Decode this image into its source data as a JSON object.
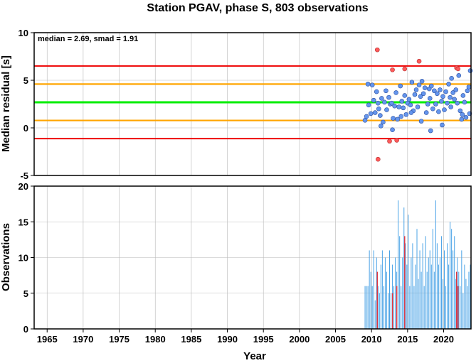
{
  "chart_data": {
    "title": "Station PGAV, phase S, 803 observations",
    "x_axis": {
      "label": "Year",
      "range": [
        1963.2,
        2023.8
      ],
      "ticks": [
        1965,
        1970,
        1975,
        1980,
        1985,
        1990,
        1995,
        2000,
        2005,
        2010,
        2015,
        2020
      ]
    },
    "colors": {
      "normal_point": "#6495ed",
      "outlier_point": "#ff5a5a",
      "median_line": "#00ee00",
      "smad_line": "#ffa500",
      "outlier_line": "#ee0000",
      "bar": "#4aa3e6",
      "bar_outlier": "#e0303a"
    },
    "panels": [
      {
        "type": "scatter",
        "ylabel": "Median residual [s]",
        "ylim": [
          -5,
          10
        ],
        "yticks": [
          -5,
          0,
          5,
          10
        ],
        "annotation": "median = 2.69, smad = 1.91",
        "median": 2.69,
        "reference_lines": [
          {
            "role": "outlier-upper",
            "y": 6.5
          },
          {
            "role": "smad-upper",
            "y": 4.6
          },
          {
            "role": "median",
            "y": 2.69
          },
          {
            "role": "smad-lower",
            "y": 0.78
          },
          {
            "role": "outlier-lower",
            "y": -1.13
          }
        ],
        "points": [
          [
            2009.1,
            0.8
          ],
          [
            2009.3,
            1.2
          ],
          [
            2009.5,
            4.6
          ],
          [
            2009.6,
            2.4
          ],
          [
            2009.9,
            1.5
          ],
          [
            2010.1,
            4.5
          ],
          [
            2010.3,
            2.9
          ],
          [
            2010.5,
            1.6
          ],
          [
            2010.7,
            3.8
          ],
          [
            2010.9,
            2.6
          ],
          [
            2011.0,
            2.0
          ],
          [
            2011.2,
            1.3
          ],
          [
            2011.4,
            3.1
          ],
          [
            2011.6,
            0.6
          ],
          [
            2011.8,
            2.7
          ],
          [
            2012.0,
            3.9
          ],
          [
            2012.1,
            1.9
          ],
          [
            2012.4,
            3.2
          ],
          [
            2012.6,
            2.5
          ],
          [
            2012.8,
            2.6
          ],
          [
            2013.0,
            1.0
          ],
          [
            2013.2,
            2.3
          ],
          [
            2013.4,
            3.7
          ],
          [
            2013.6,
            0.9
          ],
          [
            2013.8,
            2.2
          ],
          [
            2014.0,
            4.4
          ],
          [
            2014.2,
            2.8
          ],
          [
            2014.4,
            2.1
          ],
          [
            2014.6,
            3.4
          ],
          [
            2014.8,
            1.4
          ],
          [
            2015.0,
            2.6
          ],
          [
            2015.2,
            3.0
          ],
          [
            2015.4,
            2.4
          ],
          [
            2015.6,
            4.8
          ],
          [
            2015.8,
            1.8
          ],
          [
            2016.0,
            3.5
          ],
          [
            2016.2,
            4.0
          ],
          [
            2016.4,
            2.2
          ],
          [
            2016.6,
            4.5
          ],
          [
            2016.8,
            3.3
          ],
          [
            2017.0,
            4.9
          ],
          [
            2017.2,
            3.6
          ],
          [
            2017.4,
            4.2
          ],
          [
            2017.6,
            1.6
          ],
          [
            2017.8,
            2.5
          ],
          [
            2018.0,
            4.1
          ],
          [
            2018.1,
            3.1
          ],
          [
            2018.3,
            4.4
          ],
          [
            2018.5,
            2.0
          ],
          [
            2018.7,
            3.9
          ],
          [
            2018.9,
            2.5
          ],
          [
            2019.1,
            3.6
          ],
          [
            2019.3,
            1.7
          ],
          [
            2019.5,
            4.0
          ],
          [
            2019.7,
            2.8
          ],
          [
            2019.9,
            3.3
          ],
          [
            2020.1,
            1.9
          ],
          [
            2020.3,
            3.8
          ],
          [
            2020.5,
            2.6
          ],
          [
            2020.7,
            4.6
          ],
          [
            2020.9,
            3.2
          ],
          [
            2021.1,
            5.2
          ],
          [
            2021.3,
            3.7
          ],
          [
            2021.5,
            3.0
          ],
          [
            2021.7,
            4.0
          ],
          [
            2021.9,
            2.6
          ],
          [
            2022.1,
            5.5
          ],
          [
            2022.3,
            1.8
          ],
          [
            2022.5,
            0.9
          ],
          [
            2022.7,
            3.4
          ],
          [
            2022.9,
            2.7
          ],
          [
            2023.1,
            1.1
          ],
          [
            2023.3,
            3.9
          ],
          [
            2023.5,
            4.3
          ],
          [
            2023.7,
            6.0
          ],
          [
            2011.3,
            0.2
          ],
          [
            2012.9,
            -0.2
          ],
          [
            2014.1,
            1.2
          ],
          [
            2016.9,
            0.7
          ],
          [
            2018.2,
            -0.3
          ],
          [
            2019.8,
            0.3
          ],
          [
            2021.0,
            2.2
          ],
          [
            2022.6,
            1.4
          ],
          [
            2023.6,
            1.5
          ],
          [
            2015.5,
            1.6
          ]
        ],
        "outliers": [
          [
            2010.8,
            8.2
          ],
          [
            2012.9,
            6.1
          ],
          [
            2014.6,
            6.2
          ],
          [
            2016.6,
            7.0
          ],
          [
            2021.8,
            6.3
          ],
          [
            2022.0,
            6.2
          ],
          [
            2010.9,
            -3.3
          ],
          [
            2012.5,
            -1.4
          ],
          [
            2013.5,
            -1.3
          ]
        ]
      },
      {
        "type": "bar",
        "ylabel": "Observations",
        "ylim": [
          0,
          20
        ],
        "yticks": [
          0,
          5,
          10,
          15,
          20
        ],
        "bars": [
          [
            2009.1,
            6
          ],
          [
            2009.3,
            6
          ],
          [
            2009.5,
            6
          ],
          [
            2009.7,
            11
          ],
          [
            2009.9,
            8
          ],
          [
            2010.1,
            6
          ],
          [
            2010.3,
            11
          ],
          [
            2010.5,
            4
          ],
          [
            2010.7,
            10
          ],
          [
            2010.9,
            6
          ],
          [
            2011.1,
            5
          ],
          [
            2011.3,
            9
          ],
          [
            2011.5,
            11
          ],
          [
            2011.7,
            6
          ],
          [
            2011.9,
            10
          ],
          [
            2012.1,
            8
          ],
          [
            2012.3,
            5
          ],
          [
            2012.5,
            11
          ],
          [
            2012.7,
            5
          ],
          [
            2012.9,
            9
          ],
          [
            2013.1,
            6
          ],
          [
            2013.3,
            10
          ],
          [
            2013.5,
            8
          ],
          [
            2013.7,
            18
          ],
          [
            2013.9,
            13
          ],
          [
            2014.1,
            6
          ],
          [
            2014.3,
            10
          ],
          [
            2014.5,
            17
          ],
          [
            2014.7,
            12
          ],
          [
            2014.9,
            9
          ],
          [
            2015.1,
            16
          ],
          [
            2015.3,
            6
          ],
          [
            2015.5,
            10
          ],
          [
            2015.7,
            12
          ],
          [
            2015.9,
            6
          ],
          [
            2016.1,
            9
          ],
          [
            2016.3,
            14
          ],
          [
            2016.5,
            7
          ],
          [
            2016.7,
            11
          ],
          [
            2016.9,
            8
          ],
          [
            2017.1,
            12
          ],
          [
            2017.3,
            6
          ],
          [
            2017.5,
            13
          ],
          [
            2017.7,
            8
          ],
          [
            2017.9,
            10
          ],
          [
            2018.1,
            11
          ],
          [
            2018.3,
            9
          ],
          [
            2018.5,
            14
          ],
          [
            2018.7,
            8
          ],
          [
            2018.9,
            18
          ],
          [
            2019.1,
            12
          ],
          [
            2019.3,
            9
          ],
          [
            2019.5,
            10
          ],
          [
            2019.7,
            13
          ],
          [
            2019.9,
            7
          ],
          [
            2020.1,
            11
          ],
          [
            2020.3,
            6
          ],
          [
            2020.5,
            12
          ],
          [
            2020.7,
            9
          ],
          [
            2020.9,
            15
          ],
          [
            2021.1,
            14
          ],
          [
            2021.3,
            11
          ],
          [
            2021.5,
            13
          ],
          [
            2021.7,
            7
          ],
          [
            2021.9,
            10
          ],
          [
            2022.1,
            8
          ],
          [
            2022.3,
            6
          ],
          [
            2022.5,
            11
          ],
          [
            2022.7,
            5
          ],
          [
            2022.9,
            9
          ],
          [
            2023.1,
            7
          ],
          [
            2023.3,
            6
          ],
          [
            2023.5,
            8
          ],
          [
            2023.7,
            9
          ]
        ],
        "outlier_bars": [
          [
            2010.8,
            8
          ],
          [
            2012.9,
            5
          ],
          [
            2013.5,
            6
          ],
          [
            2014.6,
            13
          ],
          [
            2021.8,
            8
          ],
          [
            2022.0,
            6
          ]
        ]
      }
    ]
  }
}
